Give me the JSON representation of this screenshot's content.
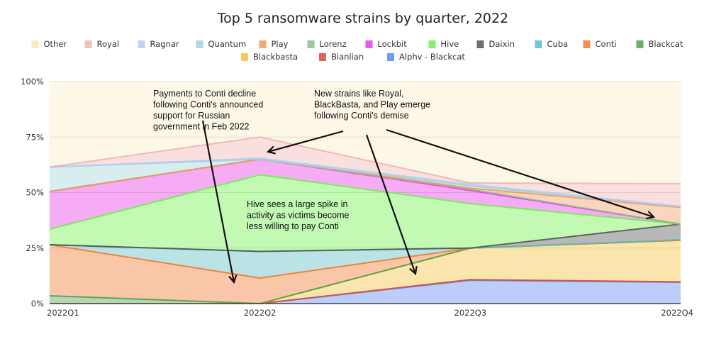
{
  "chart_data": {
    "type": "area",
    "stacked": true,
    "title": "Top 5 ransomware strains by quarter, 2022",
    "categories": [
      "2022Q1",
      "2022Q2",
      "2022Q3",
      "2022Q4"
    ],
    "y_ticks": [
      "0%",
      "25%",
      "50%",
      "75%",
      "100%"
    ],
    "ylim": [
      0,
      100
    ],
    "grid": true,
    "legend_position": "top",
    "series": [
      {
        "name": "Alphv - Blackcat",
        "color": "#5a8af0",
        "values": [
          0,
          0,
          10.5,
          9.6
        ]
      },
      {
        "name": "Bianlian",
        "color": "#d84a3a",
        "values": [
          0,
          0,
          0.3,
          0.2
        ]
      },
      {
        "name": "Blackbasta",
        "color": "#f2c03c",
        "values": [
          0,
          0,
          14.2,
          18.7
        ]
      },
      {
        "name": "Blackcat",
        "color": "#4fa04f",
        "values": [
          3.5,
          0,
          0,
          0
        ]
      },
      {
        "name": "Conti",
        "color": "#f07a30",
        "values": [
          23,
          11.5,
          0,
          0
        ]
      },
      {
        "name": "Cuba",
        "color": "#5bbcc4",
        "values": [
          0,
          12,
          0,
          0.3
        ]
      },
      {
        "name": "Daixin",
        "color": "#555555",
        "values": [
          0,
          0,
          0,
          7
        ]
      },
      {
        "name": "Hive",
        "color": "#6ef04a",
        "values": [
          7,
          34.5,
          20,
          0
        ]
      },
      {
        "name": "Lockbit",
        "color": "#e83ae8",
        "values": [
          17,
          7,
          6,
          0
        ]
      },
      {
        "name": "Lorenz",
        "color": "#8cbf8c",
        "values": [
          0,
          0,
          0.5,
          0
        ]
      },
      {
        "name": "Play",
        "color": "#ef9a5c",
        "values": [
          0,
          0,
          0.5,
          7.5
        ]
      },
      {
        "name": "Quantum",
        "color": "#9fd3d8",
        "values": [
          11,
          0,
          1,
          0.3
        ]
      },
      {
        "name": "Ragnar",
        "color": "#b4cbf5",
        "values": [
          0,
          0.5,
          0.7,
          0.2
        ]
      },
      {
        "name": "Royal",
        "color": "#f0b4b0",
        "values": [
          0,
          9.5,
          0.6,
          10.2
        ]
      },
      {
        "name": "Other",
        "color": "#f5e2a8",
        "values": [
          38.5,
          25,
          45.7,
          46
        ]
      }
    ],
    "legend_order": [
      "Other",
      "Royal",
      "Ragnar",
      "Quantum",
      "Play",
      "Lorenz",
      "Lockbit",
      "Hive",
      "Daixin",
      "Cuba",
      "Conti",
      "Blackcat",
      "Blackbasta",
      "Bianlian",
      "Alphv - Blackcat"
    ],
    "annotations": [
      {
        "lines": [
          "Payments to Conti decline",
          "following Conti's announced",
          "support for Russian",
          "government in Feb 2022"
        ]
      },
      {
        "lines": [
          "New strains like Royal,",
          "BlackBasta, and Play emerge",
          "following Conti's demise"
        ]
      },
      {
        "lines": [
          "Hive sees a large spike in",
          "activity as victims become",
          "less willing to pay Conti"
        ]
      }
    ]
  }
}
